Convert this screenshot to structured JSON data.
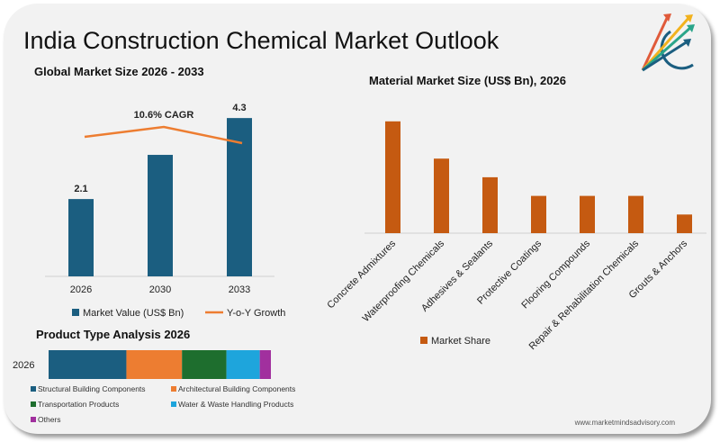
{
  "title": "India Construction Chemical Market Outlook",
  "website": "www.marketmindsadvisory.com",
  "colors": {
    "market_value": "#1b5e80",
    "growth": "#ed7d31",
    "material": "#c55a11"
  },
  "logo": {
    "icon": "rising-arrows-logo-icon"
  },
  "chart_data": [
    {
      "type": "bar",
      "title": "Global Market Size 2026 - 2033",
      "categories": [
        "2026",
        "2030",
        "2033"
      ],
      "series": [
        {
          "name": "Market Value (US$ Bn)",
          "values": [
            2.1,
            3.3,
            4.3
          ],
          "data_labels": [
            "2.1",
            "",
            "4.3"
          ]
        },
        {
          "name": "Y-o-Y Growth",
          "type": "line"
        }
      ],
      "annotation": "10.6% CAGR"
    },
    {
      "type": "bar",
      "title": "Material Market Size (US$ Bn), 2026",
      "categories": [
        "Concrete Admixtures",
        "Waterproofing Chemicals",
        "Adhesives & Sealants",
        "Protective Coatings",
        "Flooring Compounds",
        "Repair & Rehabilitation Chemicals",
        "Grouts & Anchors"
      ],
      "series": [
        {
          "name": "Market Share",
          "values": [
            6,
            4,
            3,
            2,
            2,
            2,
            1
          ]
        }
      ]
    },
    {
      "type": "bar",
      "orientation": "horizontal-stacked",
      "title": "Product Type Analysis 2026",
      "categories": [
        "2026"
      ],
      "series": [
        {
          "name": "Structural Building Components",
          "values": [
            35
          ],
          "color": "#1b5e80"
        },
        {
          "name": "Architectural Building Components",
          "values": [
            25
          ],
          "color": "#ed7d31"
        },
        {
          "name": "Transportation Products",
          "values": [
            20
          ],
          "color": "#1e6e2e"
        },
        {
          "name": "Water & Waste Handling Products",
          "values": [
            15
          ],
          "color": "#1ea5dc"
        },
        {
          "name": "Others",
          "values": [
            5
          ],
          "color": "#a1309e"
        }
      ]
    }
  ]
}
